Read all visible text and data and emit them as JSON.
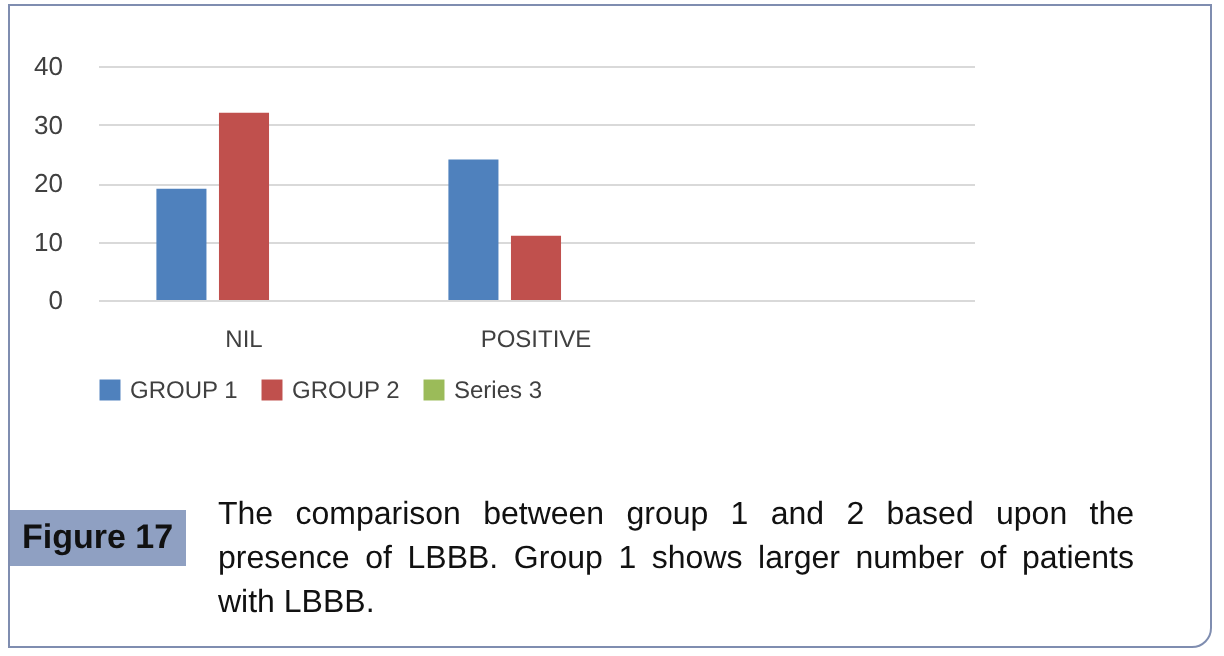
{
  "chart_data": {
    "type": "bar",
    "categories": [
      "NIL",
      "POSITIVE",
      null
    ],
    "series": [
      {
        "name": "GROUP 1",
        "color": "#4f81bd",
        "values": [
          19,
          24,
          null
        ]
      },
      {
        "name": "GROUP 2",
        "color": "#c0504d",
        "values": [
          32,
          11,
          null
        ]
      },
      {
        "name": "Series 3",
        "color": "#9bbb59",
        "values": [
          null,
          null,
          null
        ]
      }
    ],
    "ylim": [
      0,
      40
    ],
    "yticks": [
      0,
      10,
      20,
      30,
      40
    ],
    "grid": "y",
    "legend": "bottom",
    "annotations": [
      "Figure 17",
      "The comparison between group 1 and 2 based upon the presence of LBBB. Group 1 shows larger number of patients with LBBB."
    ]
  }
}
